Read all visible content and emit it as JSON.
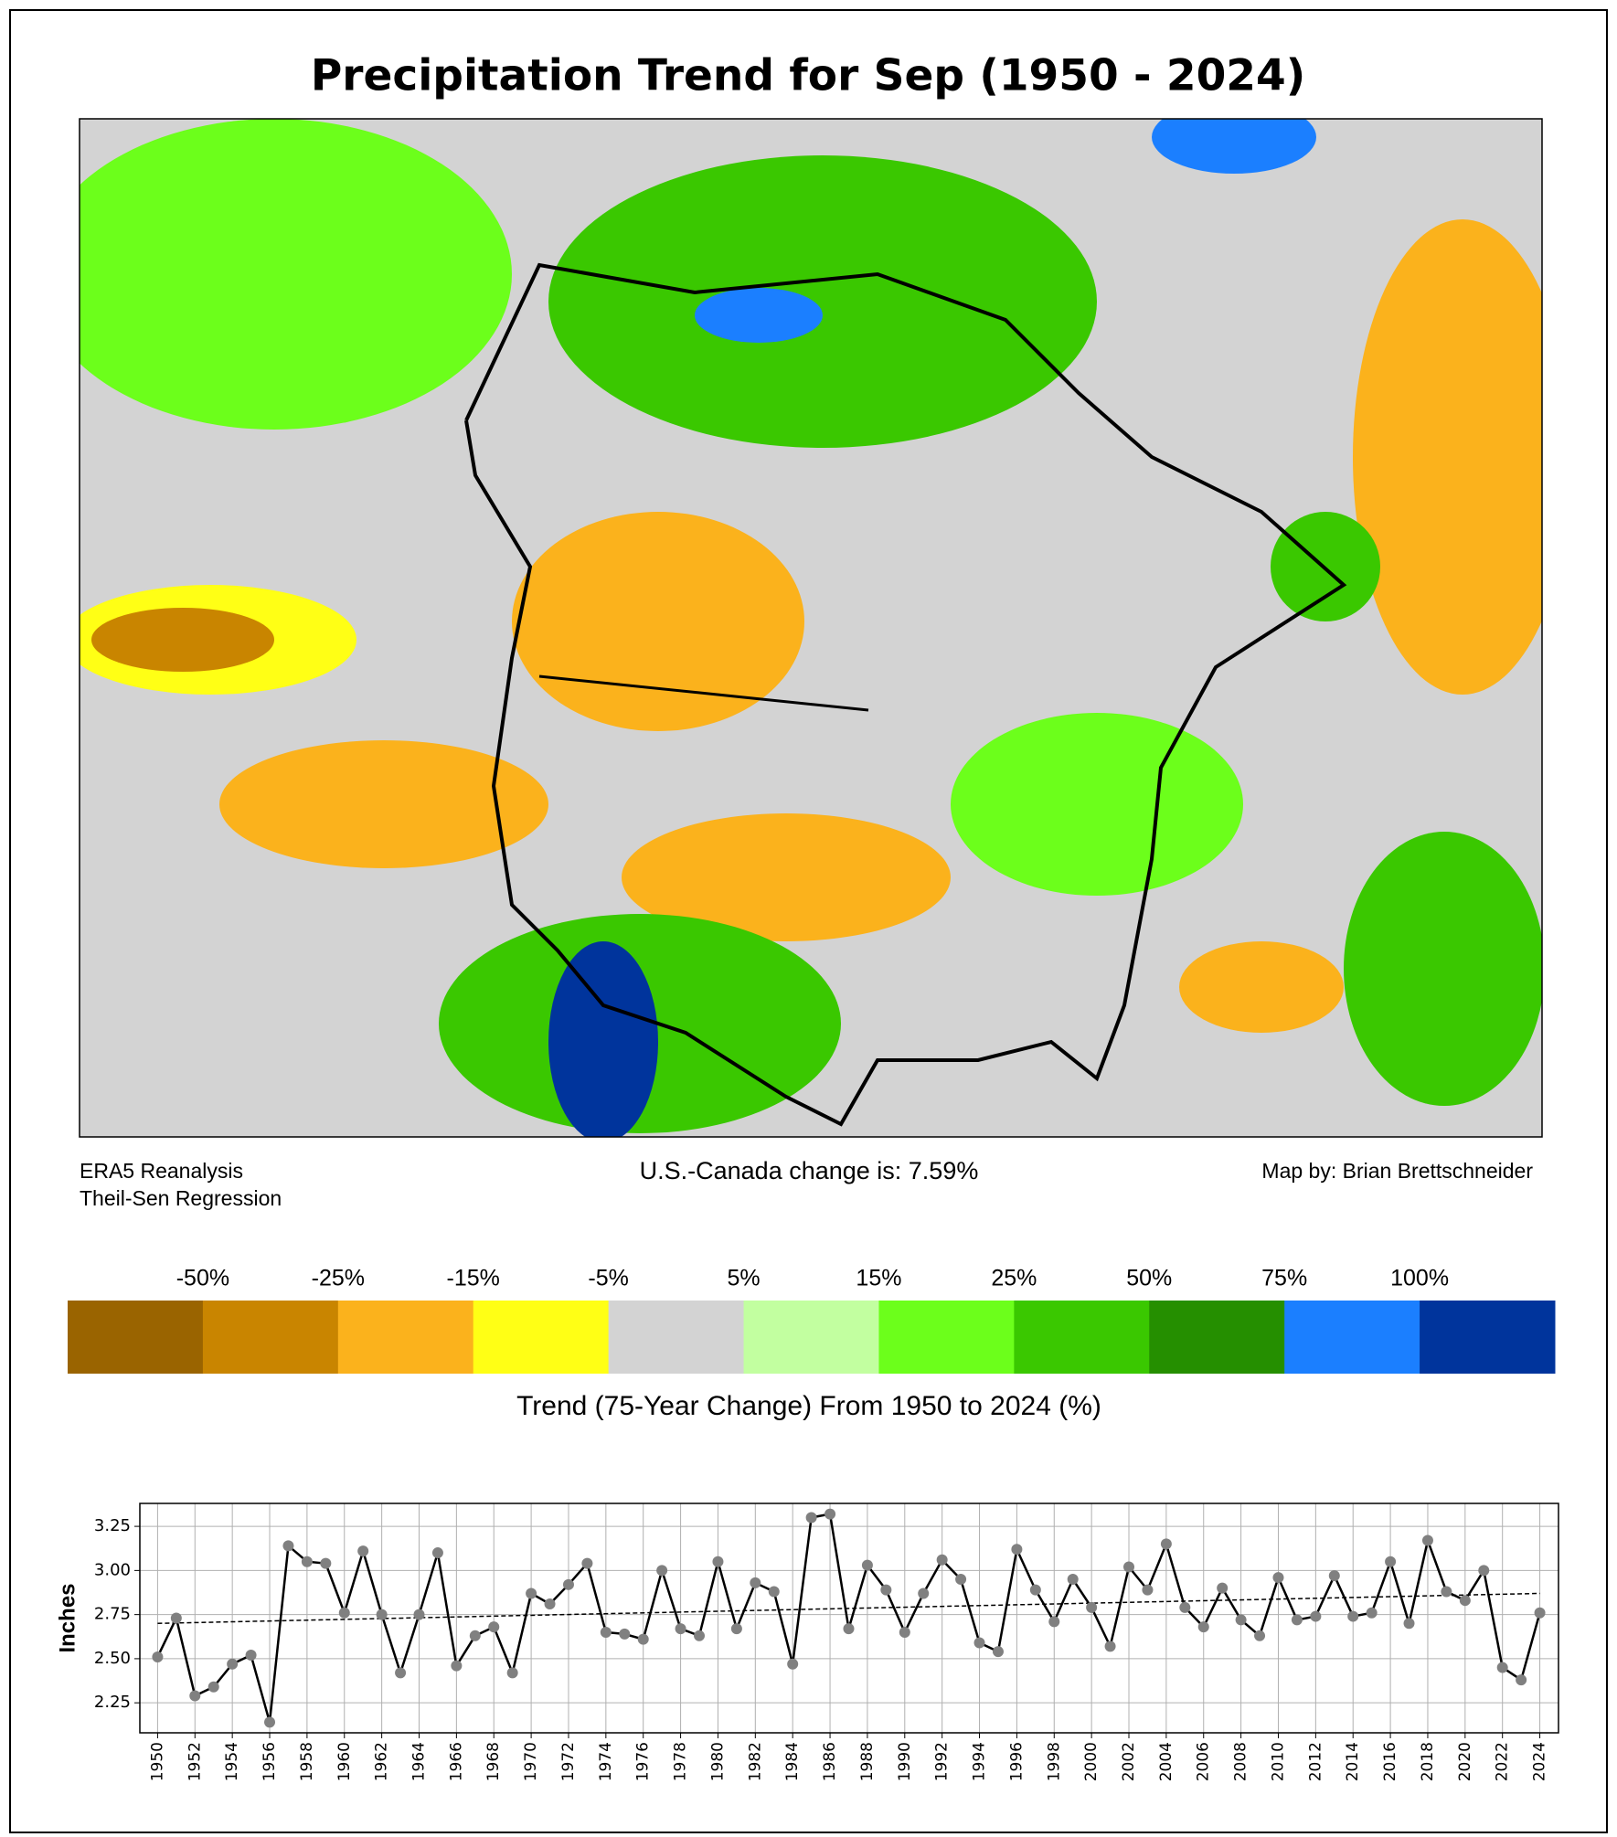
{
  "title": "Precipitation Trend for Sep (1950 - 2024)",
  "map": {
    "source": "ERA5 Reanalysis",
    "method": "Theil-Sen Regression",
    "change_text": "U.S.-Canada change is: 7.59%",
    "credit": "Map by: Brian Brettschneider"
  },
  "colorbar": {
    "labels": [
      "-50%",
      "-25%",
      "-15%",
      "-5%",
      "5%",
      "15%",
      "25%",
      "50%",
      "75%",
      "100%"
    ],
    "colors": [
      "#9a6400",
      "#c98500",
      "#fbb21c",
      "#ffff15",
      "#d3d3d3",
      "#c2ffa0",
      "#6cff1b",
      "#3ac800",
      "#258f00",
      "#1b7fff",
      "#00349c"
    ],
    "caption": "Trend (75-Year Change) From 1950 to 2024 (%)"
  },
  "chart_data": {
    "type": "line",
    "y_label": "Inches",
    "color": "#000000",
    "marker_color": "#808080",
    "grid": true,
    "x": [
      1950,
      1951,
      1952,
      1953,
      1954,
      1955,
      1956,
      1957,
      1958,
      1959,
      1960,
      1961,
      1962,
      1963,
      1964,
      1965,
      1966,
      1967,
      1968,
      1969,
      1970,
      1971,
      1972,
      1973,
      1974,
      1975,
      1976,
      1977,
      1978,
      1979,
      1980,
      1981,
      1982,
      1983,
      1984,
      1985,
      1986,
      1987,
      1988,
      1989,
      1990,
      1991,
      1992,
      1993,
      1994,
      1995,
      1996,
      1997,
      1998,
      1999,
      2000,
      2001,
      2002,
      2003,
      2004,
      2005,
      2006,
      2007,
      2008,
      2009,
      2010,
      2011,
      2012,
      2013,
      2014,
      2015,
      2016,
      2017,
      2018,
      2019,
      2020,
      2021,
      2022,
      2023,
      2024
    ],
    "values": [
      2.51,
      2.73,
      2.29,
      2.34,
      2.47,
      2.52,
      2.14,
      3.14,
      3.05,
      3.04,
      2.76,
      3.11,
      2.75,
      2.42,
      2.75,
      3.1,
      2.46,
      2.63,
      2.68,
      2.42,
      2.87,
      2.81,
      2.92,
      3.04,
      2.65,
      2.64,
      2.61,
      3.0,
      2.67,
      2.63,
      3.05,
      2.67,
      2.93,
      2.88,
      2.47,
      3.3,
      3.32,
      2.67,
      3.03,
      2.89,
      2.65,
      2.87,
      3.06,
      2.95,
      2.59,
      2.54,
      3.12,
      2.89,
      2.71,
      2.95,
      2.79,
      2.57,
      3.02,
      2.89,
      3.15,
      2.79,
      2.68,
      2.9,
      2.72,
      2.63,
      2.96,
      2.72,
      2.74,
      2.97,
      2.74,
      2.76,
      3.05,
      2.7,
      3.17,
      2.88,
      2.83,
      3.0,
      2.45,
      2.38,
      2.76
    ],
    "trend_line": {
      "x": [
        1950,
        2024
      ],
      "values": [
        2.7,
        2.87
      ]
    },
    "xlim": [
      1949.05,
      2025
    ],
    "ylim": [
      2.08,
      3.38
    ],
    "xticks": [
      1950,
      1952,
      1954,
      1956,
      1958,
      1960,
      1962,
      1964,
      1966,
      1968,
      1970,
      1972,
      1974,
      1976,
      1978,
      1980,
      1982,
      1984,
      1986,
      1988,
      1990,
      1992,
      1994,
      1996,
      1998,
      2000,
      2002,
      2004,
      2006,
      2008,
      2010,
      2012,
      2014,
      2016,
      2018,
      2020,
      2022,
      2024
    ],
    "yticks": [
      2.25,
      {
        "value": 2.5,
        "label": "2.50"
      },
      2.75,
      {
        "value": 3,
        "label": "3.00"
      },
      3.25
    ]
  }
}
